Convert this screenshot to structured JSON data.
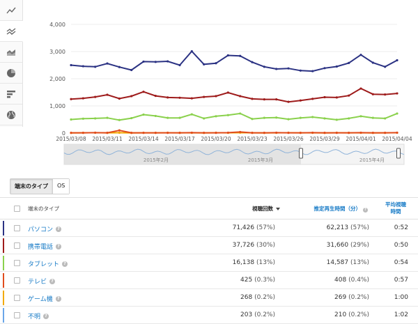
{
  "sidebar": {
    "buttons": [
      {
        "icon": "line-chart-icon",
        "active": false
      },
      {
        "icon": "multi-line-chart-icon",
        "active": true
      },
      {
        "icon": "area-chart-icon",
        "active": false
      },
      {
        "icon": "pie-chart-icon",
        "active": false
      },
      {
        "icon": "bar-chart-icon",
        "active": false
      },
      {
        "icon": "globe-icon",
        "active": false
      }
    ]
  },
  "chart_data": {
    "type": "line",
    "ylim": [
      0,
      4000
    ],
    "yticks": [
      0,
      1000,
      2000,
      3000,
      4000
    ],
    "ytick_labels": [
      "0",
      "1,000",
      "2,000",
      "3,000",
      "4,000"
    ],
    "x_tick_labels": [
      "2015/03/08",
      "2015/03/11",
      "2015/03/14",
      "2015/03/17",
      "2015/03/20",
      "2015/03/23",
      "2015/03/26",
      "2015/03/29",
      "2015/04/01",
      "2015/04/04"
    ],
    "series": [
      {
        "color": "#2b3283",
        "values": [
          2500,
          2460,
          2440,
          2560,
          2430,
          2320,
          2630,
          2620,
          2640,
          2500,
          3010,
          2530,
          2570,
          2860,
          2840,
          2610,
          2440,
          2360,
          2380,
          2300,
          2280,
          2390,
          2450,
          2580,
          2880,
          2590,
          2440,
          2680
        ]
      },
      {
        "color": "#9e1b1b",
        "values": [
          1250,
          1280,
          1330,
          1410,
          1270,
          1360,
          1520,
          1370,
          1310,
          1300,
          1280,
          1330,
          1360,
          1490,
          1360,
          1260,
          1240,
          1240,
          1150,
          1200,
          1260,
          1320,
          1310,
          1380,
          1640,
          1430,
          1420,
          1460
        ]
      },
      {
        "color": "#8ad14c",
        "values": [
          500,
          530,
          540,
          560,
          480,
          550,
          680,
          630,
          560,
          560,
          690,
          540,
          620,
          660,
          720,
          520,
          560,
          570,
          510,
          560,
          590,
          540,
          490,
          540,
          620,
          560,
          540,
          720
        ]
      },
      {
        "color": "#e04c1d",
        "values": [
          10,
          10,
          15,
          10,
          100,
          10,
          10,
          10,
          10,
          10,
          15,
          10,
          10,
          15,
          40,
          10,
          10,
          15,
          10,
          10,
          15,
          10,
          10,
          10,
          15,
          10,
          10,
          15
        ]
      },
      {
        "color": "#f2a900",
        "values": [
          8,
          10,
          12,
          10,
          12,
          8,
          10,
          10,
          12,
          10,
          10,
          8,
          12,
          10,
          15,
          10,
          8,
          10,
          12,
          10,
          10,
          8,
          12,
          10,
          10,
          8,
          10,
          12
        ]
      }
    ],
    "overview_labels": [
      "2015年2月",
      "2015年3月",
      "2015年4月"
    ]
  },
  "tabs": [
    {
      "label": "端末のタイプ",
      "active": true
    },
    {
      "label": "OS",
      "active": false
    }
  ],
  "table": {
    "headers": {
      "name": "端末のタイプ",
      "views": "視聴回数",
      "watch_time": "推定再生時間（分）",
      "avg_line1": "平均視聴",
      "avg_line2": "時間"
    },
    "rows": [
      {
        "name": "パソコン",
        "color": "#2b3283",
        "views": "71,426",
        "views_pct": "(57%)",
        "watch": "62,213",
        "watch_pct": "(57%)",
        "avg": "0:52"
      },
      {
        "name": "携帯電話",
        "color": "#9e1b1b",
        "views": "37,726",
        "views_pct": "(30%)",
        "watch": "31,660",
        "watch_pct": "(29%)",
        "avg": "0:50"
      },
      {
        "name": "タブレット",
        "color": "#8ad14c",
        "views": "16,138",
        "views_pct": "(13%)",
        "watch": "14,587",
        "watch_pct": "(13%)",
        "avg": "0:54"
      },
      {
        "name": "テレビ",
        "color": "#e04c1d",
        "views": "425",
        "views_pct": "(0.3%)",
        "watch": "408",
        "watch_pct": "(0.4%)",
        "avg": "0:57"
      },
      {
        "name": "ゲーム機",
        "color": "#f2a900",
        "views": "268",
        "views_pct": "(0.2%)",
        "watch": "269",
        "watch_pct": "(0.2%)",
        "avg": "1:00"
      },
      {
        "name": "不明",
        "color": "#6aa6e8",
        "views": "203",
        "views_pct": "(0.2%)",
        "watch": "210",
        "watch_pct": "(0.2%)",
        "avg": "1:02"
      }
    ]
  }
}
